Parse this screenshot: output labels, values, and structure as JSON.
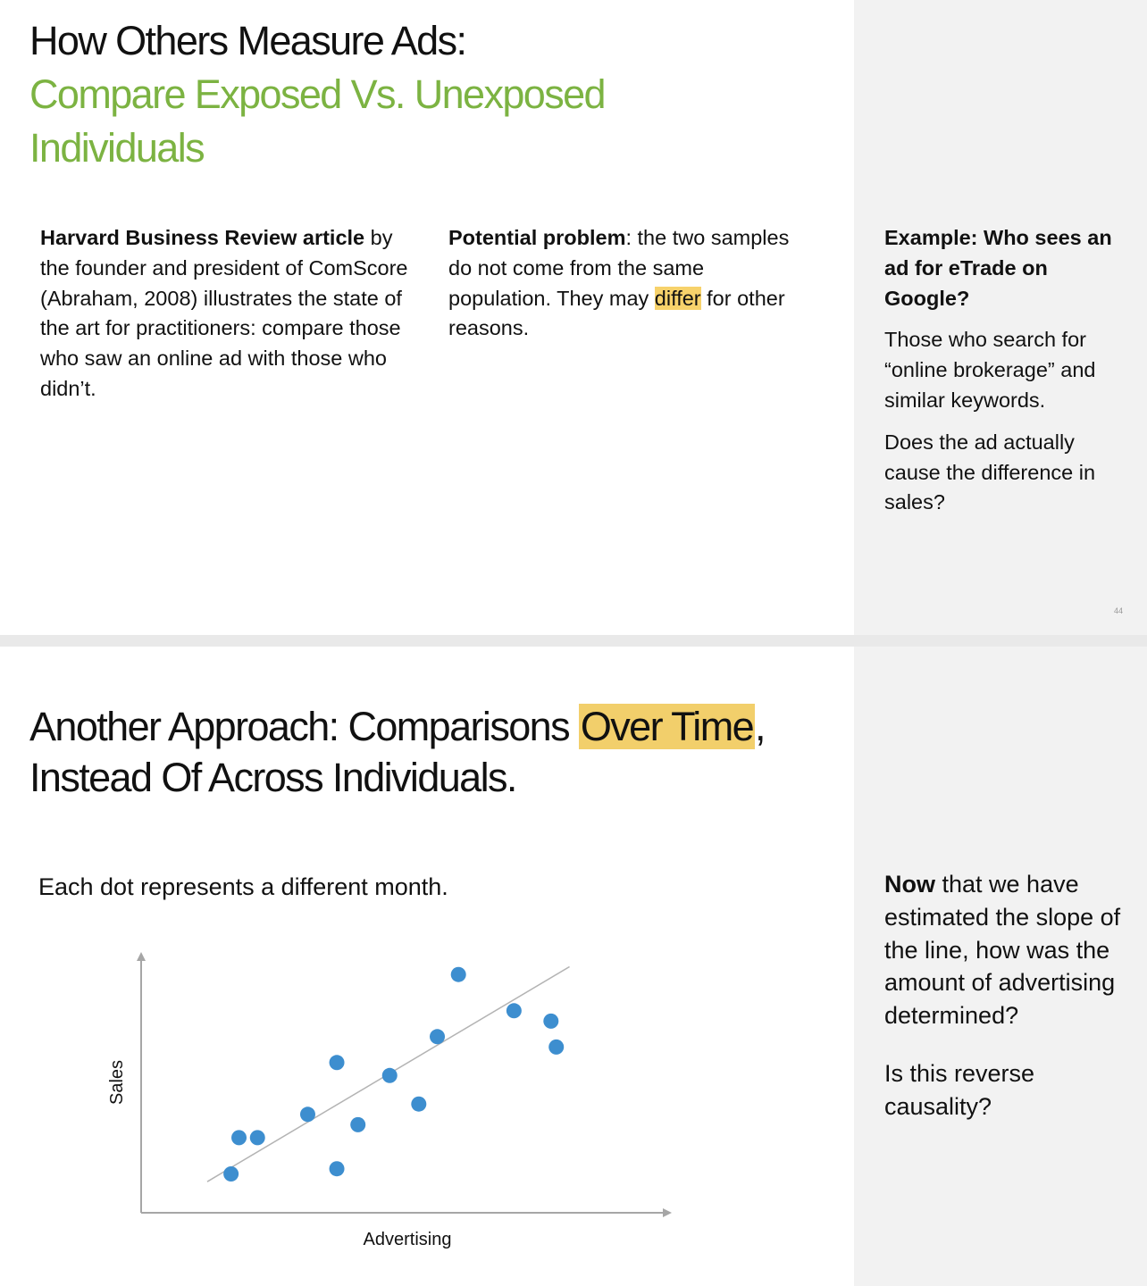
{
  "slide1": {
    "title": "How Others Measure Ads:",
    "subtitle_line1": "Compare Exposed Vs. Unexposed",
    "subtitle_line2": "Individuals",
    "col1": {
      "bold": "Harvard Business Review article",
      "text": " by the founder and president of ComScore (Abraham, 2008) illustrates the state of the art for practitioners: compare those who saw an online ad with those who didn’t."
    },
    "col2": {
      "bold": "Potential problem",
      "text_before": ": the two samples do not come from the same population. They may ",
      "highlight": "differ",
      "text_after": " for other reasons."
    },
    "sidebar": {
      "heading": "Example: Who sees an ad for eTrade on Google?",
      "para1": "Those who search for “online brokerage” and similar keywords.",
      "para2": "Does the ad actually cause the difference in sales?"
    },
    "page_number": "44"
  },
  "slide2": {
    "title_line1_before": "Another Approach: Comparisons ",
    "title_line1_highlight": "Over Time",
    "title_line1_after": ",",
    "title_line2": "Instead Of Across Individuals.",
    "caption": "Each dot represents a different month.",
    "sidebar": {
      "para1_bold": "Now",
      "para1_text": " that we have estimated the slope of the line, how was the amount of advertising determined?",
      "para2": "Is this reverse causality?"
    }
  },
  "chart_data": {
    "type": "scatter",
    "xlabel": "Advertising",
    "ylabel": "Sales",
    "xlim": [
      0,
      100
    ],
    "ylim": [
      0,
      100
    ],
    "grid": false,
    "points": [
      {
        "x": 17,
        "y": 15
      },
      {
        "x": 18.5,
        "y": 29
      },
      {
        "x": 22,
        "y": 29
      },
      {
        "x": 31.5,
        "y": 38
      },
      {
        "x": 37,
        "y": 17
      },
      {
        "x": 37,
        "y": 58
      },
      {
        "x": 41,
        "y": 34
      },
      {
        "x": 47,
        "y": 53
      },
      {
        "x": 52.5,
        "y": 42
      },
      {
        "x": 56,
        "y": 68
      },
      {
        "x": 60,
        "y": 92
      },
      {
        "x": 70.5,
        "y": 78
      },
      {
        "x": 77.5,
        "y": 74
      },
      {
        "x": 78.5,
        "y": 64
      }
    ],
    "trendline": {
      "x": [
        12.5,
        81
      ],
      "y": [
        12,
        95
      ]
    },
    "colors": {
      "points": "#3d8ecf",
      "trendline": "#b3b3b3",
      "axes": "#a6a6a6"
    }
  }
}
